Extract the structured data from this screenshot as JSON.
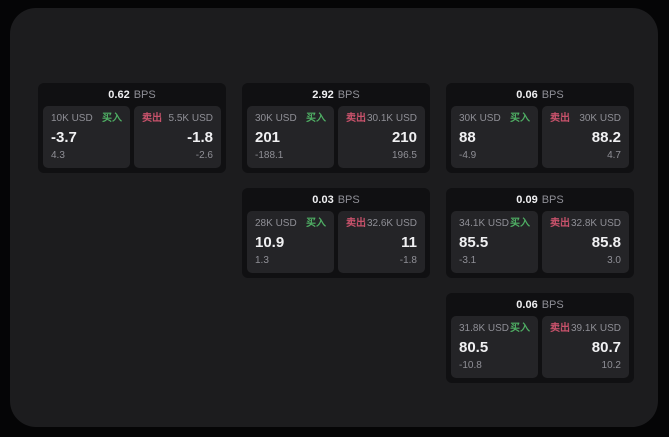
{
  "labels": {
    "bps_suffix": "BPS",
    "buy": "买入",
    "sell": "卖出"
  },
  "colors": {
    "buy_green": "#4fae64",
    "sell_red": "#c8526b",
    "panel_bg": "#1c1c1e",
    "card_bg": "#101012",
    "sub_panel_bg": "#242427"
  },
  "cards": [
    {
      "bps": "0.62",
      "buy": {
        "amount": "10K USD",
        "value": "-3.7",
        "sub": "4.3"
      },
      "sell": {
        "amount": "5.5K USD",
        "value": "-1.8",
        "sub": "-2.6"
      },
      "layout": {
        "row": 1,
        "col": 1
      }
    },
    {
      "bps": "2.92",
      "buy": {
        "amount": "30K USD",
        "value": "201",
        "sub": "-188.1"
      },
      "sell": {
        "amount": "30.1K USD",
        "value": "210",
        "sub": "196.5"
      },
      "layout": {
        "row": 1,
        "col": 2
      }
    },
    {
      "bps": "0.06",
      "buy": {
        "amount": "30K USD",
        "value": "88",
        "sub": "-4.9"
      },
      "sell": {
        "amount": "30K USD",
        "value": "88.2",
        "sub": "4.7"
      },
      "layout": {
        "row": 1,
        "col": 3
      }
    },
    {
      "bps": "0.03",
      "buy": {
        "amount": "28K USD",
        "value": "10.9",
        "sub": "1.3"
      },
      "sell": {
        "amount": "32.6K USD",
        "value": "11",
        "sub": "-1.8"
      },
      "layout": {
        "row": 2,
        "col": 2
      }
    },
    {
      "bps": "0.09",
      "buy": {
        "amount": "34.1K USD",
        "value": "85.5",
        "sub": "-3.1"
      },
      "sell": {
        "amount": "32.8K USD",
        "value": "85.8",
        "sub": "3.0"
      },
      "layout": {
        "row": 2,
        "col": 3
      }
    },
    {
      "bps": "0.06",
      "buy": {
        "amount": "31.8K USD",
        "value": "80.5",
        "sub": "-10.8"
      },
      "sell": {
        "amount": "39.1K USD",
        "value": "80.7",
        "sub": "10.2"
      },
      "layout": {
        "row": 3,
        "col": 3
      }
    }
  ]
}
